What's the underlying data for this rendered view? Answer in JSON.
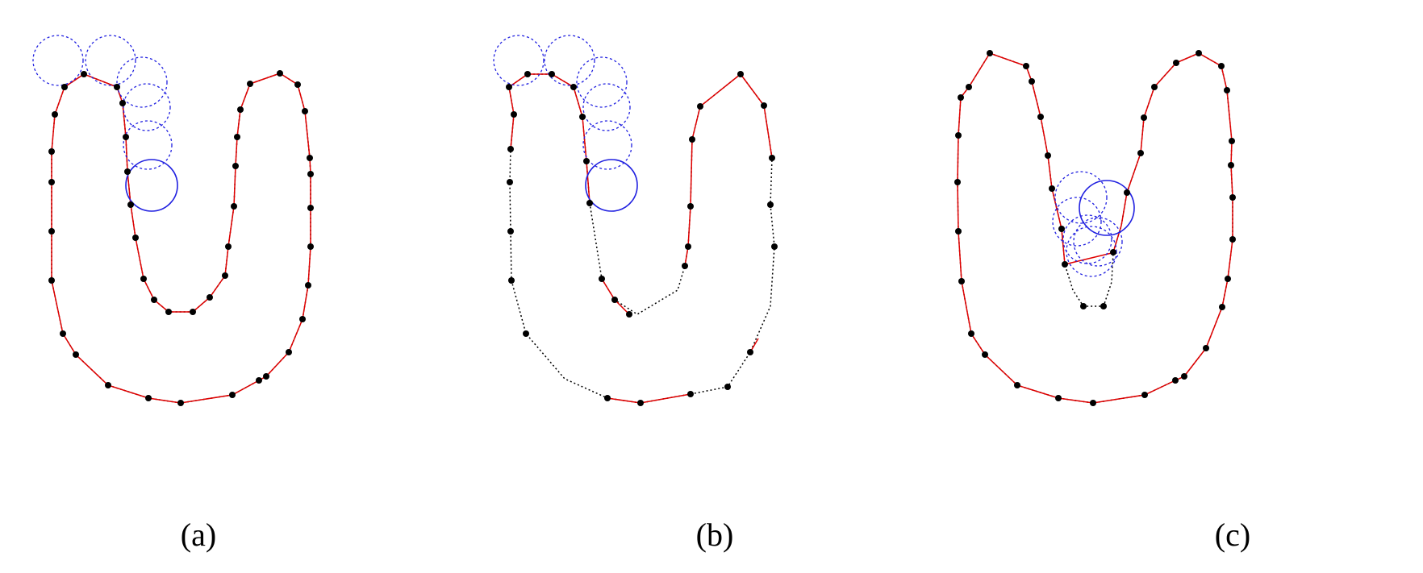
{
  "figure": {
    "panels": [
      {
        "id": "a",
        "label": "(a)"
      },
      {
        "id": "b",
        "label": "(b)"
      },
      {
        "id": "c",
        "label": "(c)"
      }
    ]
  },
  "colors": {
    "curve": "#000000",
    "polyline": "#e00000",
    "points": "#000000",
    "circle": "#2020e0"
  }
}
